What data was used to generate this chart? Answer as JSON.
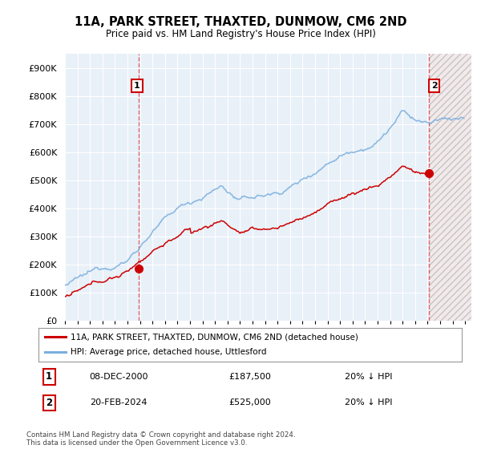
{
  "title": "11A, PARK STREET, THAXTED, DUNMOW, CM6 2ND",
  "subtitle": "Price paid vs. HM Land Registry's House Price Index (HPI)",
  "ylim": [
    0,
    950000
  ],
  "yticks": [
    0,
    100000,
    200000,
    300000,
    400000,
    500000,
    600000,
    700000,
    800000,
    900000
  ],
  "ytick_labels": [
    "£0",
    "£100K",
    "£200K",
    "£300K",
    "£400K",
    "£500K",
    "£600K",
    "£700K",
    "£800K",
    "£900K"
  ],
  "xlim_start": 1995.0,
  "xlim_end": 2027.5,
  "red_line_color": "#cc0000",
  "blue_line_color": "#7aafdf",
  "marker1_x": 2000.92,
  "marker1_y": 187500,
  "marker2_x": 2024.12,
  "marker2_y": 525000,
  "legend_entry1": "11A, PARK STREET, THAXTED, DUNMOW, CM6 2ND (detached house)",
  "legend_entry2": "HPI: Average price, detached house, Uttlesford",
  "table_row1_num": "1",
  "table_row1_date": "08-DEC-2000",
  "table_row1_price": "£187,500",
  "table_row1_info": "20% ↓ HPI",
  "table_row2_num": "2",
  "table_row2_date": "20-FEB-2024",
  "table_row2_price": "£525,000",
  "table_row2_info": "20% ↓ HPI",
  "footer": "Contains HM Land Registry data © Crown copyright and database right 2024.\nThis data is licensed under the Open Government Licence v3.0.",
  "chart_bg_color": "#e8f0f8",
  "grid_color": "#ffffff",
  "shade_color": "#f0e0e0",
  "hatch_color": "#cccccc"
}
